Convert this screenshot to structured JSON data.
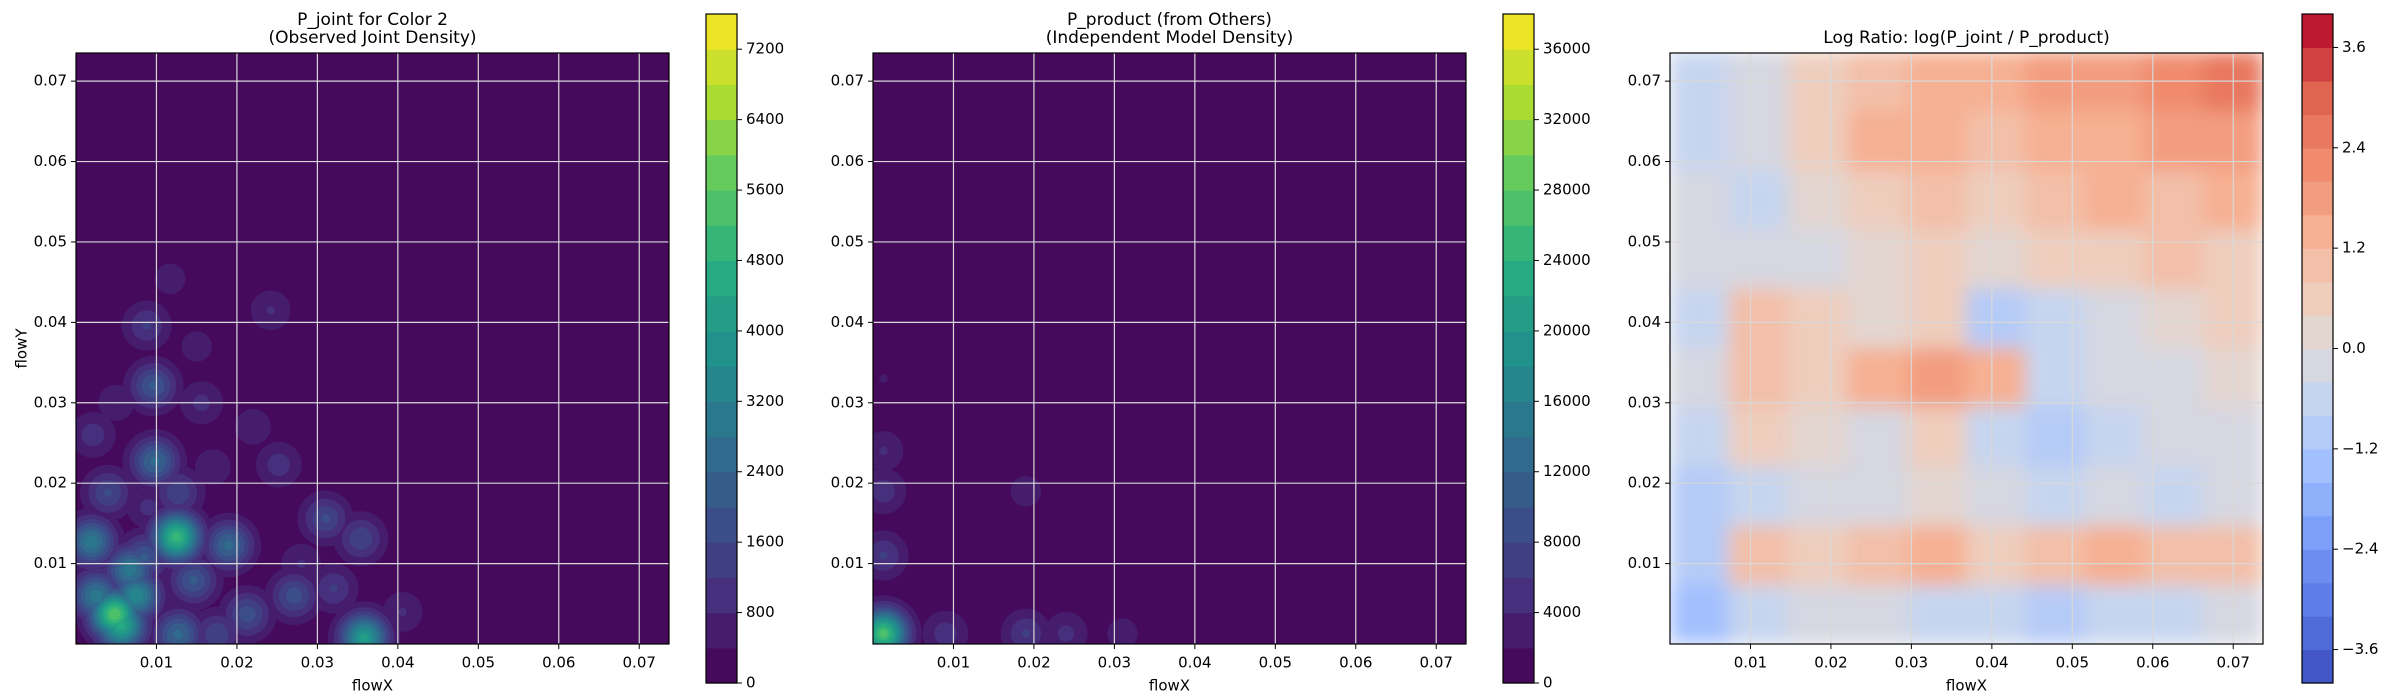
{
  "chart_data": [
    {
      "type": "contour",
      "title": "P_joint for Color 2",
      "subtitle": "(Observed Joint Density)",
      "xlabel": "flowX",
      "ylabel": "flowY",
      "colormap": "viridis",
      "xlim": [
        0,
        0.0737
      ],
      "ylim": [
        0,
        0.0735
      ],
      "xticks": [
        0.01,
        0.02,
        0.03,
        0.04,
        0.05,
        0.06,
        0.07
      ],
      "yticks": [
        0.01,
        0.02,
        0.03,
        0.04,
        0.05,
        0.06,
        0.07
      ],
      "zlim": [
        0,
        7600
      ],
      "bands": 19,
      "zticks": [
        0,
        800,
        1600,
        2400,
        3200,
        4000,
        4800,
        5600,
        6400,
        7200
      ],
      "grid": true,
      "x": [
        0.0125,
        0.0048,
        0.0056,
        0.0358,
        0.0019,
        0.0098,
        0.0096,
        0.019,
        0.0127,
        0.0025,
        0.0075,
        0.0085,
        0.0271,
        0.031,
        0.0354,
        0.0213,
        0.0175,
        0.0088,
        0.0242,
        0.0252,
        0.0156,
        0.0021,
        0.0127,
        0.004,
        0.032,
        0.0117,
        0.0406,
        0.0146,
        0.0067,
        0.005,
        0.015,
        0.022,
        0.028,
        0.009,
        0.017
      ],
      "y": [
        0.0133,
        0.0037,
        0.0023,
        0.0008,
        0.0127,
        0.0227,
        0.0321,
        0.0123,
        0.0012,
        0.006,
        0.006,
        0.0108,
        0.006,
        0.0156,
        0.0131,
        0.0037,
        0.0012,
        0.0396,
        0.0415,
        0.0223,
        0.03,
        0.026,
        0.0188,
        0.0188,
        0.0069,
        0.0454,
        0.004,
        0.0079,
        0.0092,
        0.03,
        0.037,
        0.027,
        0.01,
        0.017,
        0.022
      ],
      "z": [
        5000,
        5500,
        4500,
        4000,
        3000,
        2500,
        2000,
        2500,
        2500,
        3000,
        3500,
        2000,
        1800,
        1600,
        1500,
        1800,
        1500,
        1200,
        800,
        1000,
        900,
        1000,
        1500,
        1600,
        1200,
        600,
        800,
        2000,
        3000,
        700,
        600,
        700,
        800,
        900,
        700
      ]
    },
    {
      "type": "contour",
      "title": "P_product (from Others)",
      "subtitle": "(Independent Model Density)",
      "xlabel": "flowX",
      "colormap": "viridis",
      "xlim": [
        0,
        0.0737
      ],
      "ylim": [
        0,
        0.0735
      ],
      "xticks": [
        0.01,
        0.02,
        0.03,
        0.04,
        0.05,
        0.06,
        0.07
      ],
      "yticks": [
        0.01,
        0.02,
        0.03,
        0.04,
        0.05,
        0.06,
        0.07
      ],
      "zlim": [
        0,
        38000
      ],
      "bands": 19,
      "zticks": [
        0,
        4000,
        8000,
        12000,
        16000,
        20000,
        24000,
        28000,
        32000,
        36000
      ],
      "grid": true,
      "x": [
        0.0013,
        0.0013,
        0.0013,
        0.0013,
        0.019,
        0.024,
        0.009,
        0.031,
        0.019,
        0.0013
      ],
      "y": [
        0.0013,
        0.011,
        0.019,
        0.024,
        0.0013,
        0.0013,
        0.0013,
        0.0013,
        0.019,
        0.033
      ],
      "z": [
        26000,
        6000,
        5000,
        4000,
        6000,
        4500,
        5000,
        3000,
        3000,
        2000
      ]
    },
    {
      "type": "heatmap",
      "title": "Log Ratio: log(P_joint / P_product)",
      "xlabel": "flowX",
      "colormap": "coolwarm",
      "xlim": [
        0,
        0.0737
      ],
      "ylim": [
        0,
        0.0735
      ],
      "xticks": [
        0.01,
        0.02,
        0.03,
        0.04,
        0.05,
        0.06,
        0.07
      ],
      "yticks": [
        0.01,
        0.02,
        0.03,
        0.04,
        0.05,
        0.06,
        0.07
      ],
      "zlim": [
        -4,
        4
      ],
      "bands": 20,
      "zticks": [
        {
          "value": -3.6,
          "label": "−3.6"
        },
        {
          "value": -2.4,
          "label": "−2.4"
        },
        {
          "value": -1.2,
          "label": "−1.2"
        },
        {
          "value": 0,
          "label": "0.0"
        },
        1.2,
        2.4,
        3.6
      ],
      "grid": true,
      "x": [
        0.0037,
        0.011,
        0.0184,
        0.0258,
        0.0332,
        0.0405,
        0.0479,
        0.0553,
        0.0626,
        0.07
      ],
      "y": [
        0.0037,
        0.011,
        0.0184,
        0.0258,
        0.0332,
        0.0405,
        0.0479,
        0.0553,
        0.0626,
        0.07
      ],
      "z": [
        [
          -1.6,
          -0.8,
          -0.4,
          -0.4,
          -0.8,
          -0.8,
          -1.2,
          -0.8,
          -0.8,
          -0.4
        ],
        [
          -1.2,
          0.8,
          0.4,
          0.8,
          1.2,
          0.4,
          0.8,
          1.2,
          0.8,
          0.8
        ],
        [
          -1.2,
          -0.8,
          -0.4,
          -0.4,
          0.0,
          -0.4,
          -0.8,
          -0.4,
          -0.8,
          -0.4
        ],
        [
          -0.8,
          0.4,
          0.0,
          -0.4,
          0.4,
          -0.8,
          -1.2,
          -0.8,
          -0.4,
          -0.4
        ],
        [
          -0.4,
          0.8,
          0.4,
          1.2,
          1.6,
          1.2,
          -0.8,
          -0.4,
          -0.4,
          0.0
        ],
        [
          -0.8,
          0.8,
          0.4,
          0.0,
          0.4,
          -1.2,
          -0.8,
          -0.4,
          0.0,
          0.4
        ],
        [
          -0.4,
          -0.4,
          -0.4,
          0.0,
          0.4,
          0.0,
          0.4,
          0.4,
          0.8,
          0.4
        ],
        [
          -0.4,
          -0.8,
          0.0,
          0.4,
          0.8,
          0.4,
          0.8,
          1.2,
          0.8,
          1.2
        ],
        [
          -0.8,
          -0.4,
          0.4,
          1.2,
          1.2,
          0.8,
          1.2,
          1.2,
          1.6,
          1.6
        ],
        [
          -0.8,
          -0.4,
          0.4,
          0.8,
          1.2,
          1.2,
          1.6,
          1.6,
          2.0,
          2.4
        ]
      ]
    }
  ]
}
